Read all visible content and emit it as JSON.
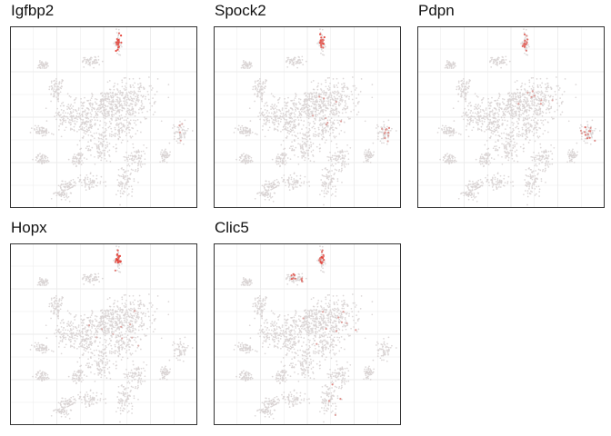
{
  "chart_data": {
    "type": "scatter",
    "subtype": "tSNE feature plot panels",
    "grid": true,
    "axes_visible": false,
    "colors": {
      "low": "#d8d3d3",
      "high": "#e8251a",
      "grid": "#ebebeb",
      "border": "#333333"
    },
    "clusters": [
      {
        "x": 0.24,
        "y": 0.66,
        "sx": 0.022,
        "sy": 0.035
      },
      {
        "x": 0.49,
        "y": 0.57,
        "sx": 0.07,
        "sy": 0.045
      },
      {
        "x": 0.57,
        "y": 0.54,
        "sx": 0.09,
        "sy": 0.055
      },
      {
        "x": 0.65,
        "y": 0.62,
        "sx": 0.07,
        "sy": 0.05
      },
      {
        "x": 0.59,
        "y": 0.42,
        "sx": 0.04,
        "sy": 0.03
      },
      {
        "x": 0.3,
        "y": 0.5,
        "sx": 0.05,
        "sy": 0.045
      },
      {
        "x": 0.4,
        "y": 0.46,
        "sx": 0.03,
        "sy": 0.035
      },
      {
        "x": 0.48,
        "y": 0.33,
        "sx": 0.04,
        "sy": 0.045
      },
      {
        "x": 0.15,
        "y": 0.42,
        "sx": 0.025,
        "sy": 0.015
      },
      {
        "x": 0.16,
        "y": 0.26,
        "sx": 0.022,
        "sy": 0.015
      },
      {
        "x": 0.36,
        "y": 0.26,
        "sx": 0.02,
        "sy": 0.02
      },
      {
        "x": 0.68,
        "y": 0.27,
        "sx": 0.03,
        "sy": 0.035
      },
      {
        "x": 0.93,
        "y": 0.41,
        "sx": 0.02,
        "sy": 0.028
      },
      {
        "x": 0.84,
        "y": 0.28,
        "sx": 0.015,
        "sy": 0.015
      },
      {
        "x": 0.42,
        "y": 0.13,
        "sx": 0.04,
        "sy": 0.02
      },
      {
        "x": 0.3,
        "y": 0.11,
        "sx": 0.025,
        "sy": 0.015
      },
      {
        "x": 0.27,
        "y": 0.06,
        "sx": 0.02,
        "sy": 0.015
      },
      {
        "x": 0.62,
        "y": 0.13,
        "sx": 0.025,
        "sy": 0.05
      },
      {
        "x": 0.43,
        "y": 0.82,
        "sx": 0.025,
        "sy": 0.015
      },
      {
        "x": 0.16,
        "y": 0.8,
        "sx": 0.015,
        "sy": 0.01
      },
      {
        "x": 0.58,
        "y": 0.93,
        "sx": 0.008,
        "sy": 0.03
      }
    ],
    "xlim": [
      0,
      1
    ],
    "ylim": [
      0,
      1
    ],
    "panels": [
      {
        "title": "Igfbp2",
        "highlight": [
          {
            "x": 0.58,
            "y": 0.93,
            "sx": 0.008,
            "sy": 0.028,
            "n": 22,
            "intensity": 0.9
          },
          {
            "x": 0.92,
            "y": 0.42,
            "sx": 0.02,
            "sy": 0.03,
            "n": 4,
            "intensity": 0.3
          }
        ]
      },
      {
        "title": "Spock2",
        "highlight": [
          {
            "x": 0.58,
            "y": 0.93,
            "sx": 0.008,
            "sy": 0.028,
            "n": 18,
            "intensity": 0.85
          },
          {
            "x": 0.93,
            "y": 0.4,
            "sx": 0.02,
            "sy": 0.03,
            "n": 10,
            "intensity": 0.45
          },
          {
            "x": 0.58,
            "y": 0.54,
            "sx": 0.08,
            "sy": 0.05,
            "n": 8,
            "intensity": 0.35
          }
        ]
      },
      {
        "title": "Pdpn",
        "highlight": [
          {
            "x": 0.58,
            "y": 0.93,
            "sx": 0.008,
            "sy": 0.028,
            "n": 14,
            "intensity": 0.7
          },
          {
            "x": 0.93,
            "y": 0.4,
            "sx": 0.02,
            "sy": 0.03,
            "n": 12,
            "intensity": 0.55
          },
          {
            "x": 0.66,
            "y": 0.58,
            "sx": 0.07,
            "sy": 0.05,
            "n": 8,
            "intensity": 0.35
          }
        ]
      },
      {
        "title": "Hopx",
        "highlight": [
          {
            "x": 0.58,
            "y": 0.93,
            "sx": 0.008,
            "sy": 0.028,
            "n": 24,
            "intensity": 0.95
          },
          {
            "x": 0.58,
            "y": 0.54,
            "sx": 0.08,
            "sy": 0.05,
            "n": 10,
            "intensity": 0.3
          }
        ]
      },
      {
        "title": "Clic5",
        "highlight": [
          {
            "x": 0.58,
            "y": 0.93,
            "sx": 0.008,
            "sy": 0.028,
            "n": 20,
            "intensity": 0.85
          },
          {
            "x": 0.44,
            "y": 0.82,
            "sx": 0.025,
            "sy": 0.015,
            "n": 10,
            "intensity": 0.75
          },
          {
            "x": 0.6,
            "y": 0.55,
            "sx": 0.08,
            "sy": 0.05,
            "n": 10,
            "intensity": 0.4
          },
          {
            "x": 0.65,
            "y": 0.13,
            "sx": 0.02,
            "sy": 0.04,
            "n": 4,
            "intensity": 0.5
          }
        ]
      }
    ]
  }
}
